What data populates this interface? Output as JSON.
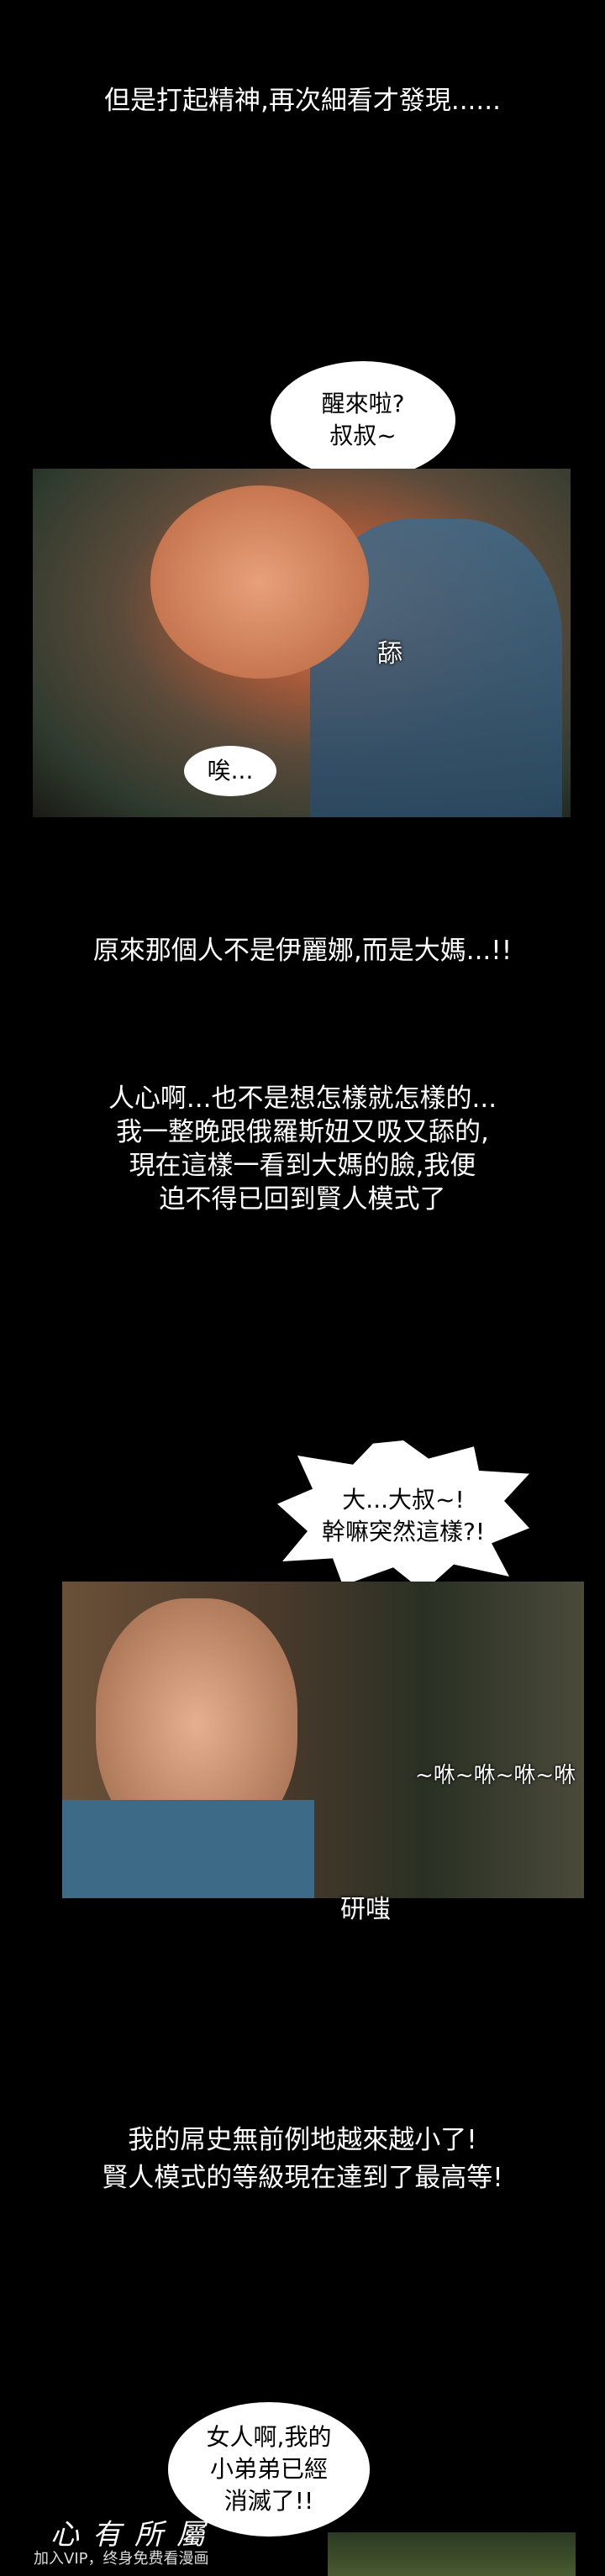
{
  "captions": [
    "但是打起精神,再次細看才發現......",
    "原來那個人不是伊麗娜,而是大媽...!!"
  ],
  "narration": [
    "人心啊...也不是想怎樣就怎樣的...",
    "我一整晚跟俄羅斯妞又吸又舔的,",
    "現在這樣一看到大媽的臉,我便",
    "迫不得已回到賢人模式了"
  ],
  "bubbles": [
    [
      "醒來啦?",
      "叔叔~"
    ],
    [
      "唉..."
    ],
    [
      "大...大叔~!",
      "幹嘛突然這樣?!"
    ],
    [
      "女人啊,我的",
      "小弟弟已經",
      "消滅了!!"
    ]
  ],
  "sfx": [
    "舔",
    "~咻~咻~咻~咻",
    "研嗤"
  ],
  "closing": [
    "我的屌史無前例地越來越小了!",
    "賢人模式的等級現在達到了最高等!"
  ],
  "watermark": {
    "logo": "心有所屬",
    "text": "加入VIP，终身免费看漫画"
  }
}
